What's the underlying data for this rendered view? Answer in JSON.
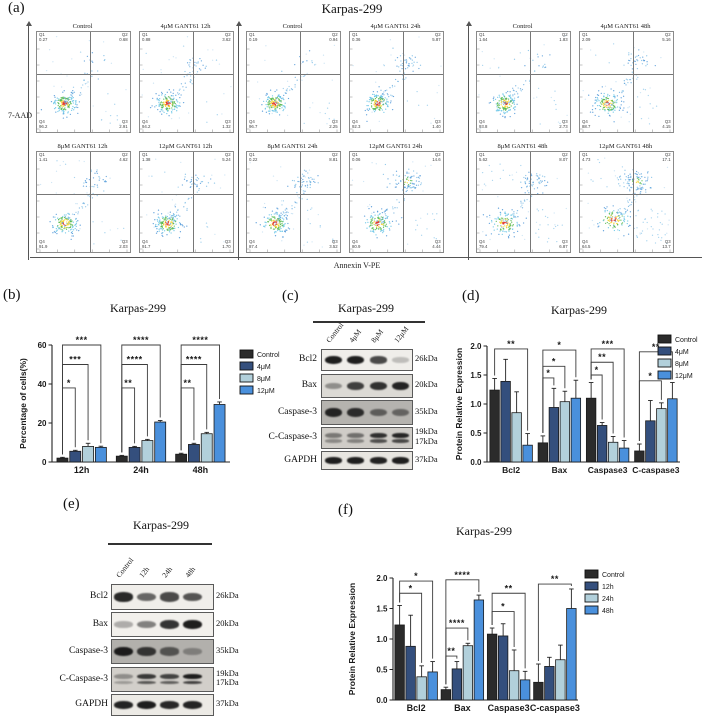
{
  "panel_a": {
    "label": "(a)",
    "title": "Karpas-299",
    "y_axis_label": "7-AAD",
    "x_axis_label": "Annexin V-PE",
    "quadrant_names": [
      "Q1",
      "Q2",
      "Q3",
      "Q4"
    ],
    "groups": [
      {
        "name": "12h",
        "plots": [
          {
            "title": "Control",
            "q1": "0.27",
            "q2": "0.68",
            "q3": "2.91",
            "q4": "96.2"
          },
          {
            "title": "4μM GANT61 12h",
            "q1": "0.88",
            "q2": "3.62",
            "q3": "1.32",
            "q4": "94.2"
          },
          {
            "title": "8μM GANT61 12h",
            "q1": "1.41",
            "q2": "4.62",
            "q3": "2.03",
            "q4": "91.9"
          },
          {
            "title": "12μM GANT61 12h",
            "q1": "1.38",
            "q2": "5.24",
            "q3": "1.70",
            "q4": "91.7"
          }
        ]
      },
      {
        "name": "24h",
        "plots": [
          {
            "title": "Control",
            "q1": "0.19",
            "q2": "0.94",
            "q3": "2.25",
            "q4": "96.7"
          },
          {
            "title": "4μM GANT61 24h",
            "q1": "0.36",
            "q2": "5.87",
            "q3": "1.40",
            "q4": "92.3"
          },
          {
            "title": "8μM GANT61 24h",
            "q1": "0.22",
            "q2": "8.81",
            "q3": "3.52",
            "q4": "87.4"
          },
          {
            "title": "12μM GANT61 24h",
            "q1": "0.06",
            "q2": "14.6",
            "q3": "4.44",
            "q4": "80.9"
          }
        ]
      },
      {
        "name": "48h",
        "plots": [
          {
            "title": "Control",
            "q1": "1.64",
            "q2": "1.83",
            "q3": "2.73",
            "q4": "93.8"
          },
          {
            "title": "4μM GANT61 48h",
            "q1": "2.09",
            "q2": "5.16",
            "q3": "4.15",
            "q4": "88.7"
          },
          {
            "title": "8μM GANT61 48h",
            "q1": "5.62",
            "q2": "8.07",
            "q3": "6.87",
            "q4": "79.4"
          },
          {
            "title": "12μM GANT61 48h",
            "q1": "4.73",
            "q2": "17.1",
            "q3": "13.7",
            "q4": "64.5"
          }
        ]
      }
    ]
  },
  "panel_c": {
    "label": "(c)",
    "title": "Karpas-299",
    "lanes": [
      "Control",
      "4μM",
      "8μM",
      "12μM"
    ],
    "rows": [
      {
        "protein": "Bcl2",
        "kda": [
          "26kDa"
        ],
        "bands": [
          0.95,
          0.95,
          0.75,
          0.22
        ],
        "bg": "#f0eeea"
      },
      {
        "protein": "Bax",
        "kda": [
          "20kDa"
        ],
        "bands": [
          0.38,
          0.78,
          0.85,
          0.92
        ],
        "bg": "#dcdad5"
      },
      {
        "protein": "Caspase-3",
        "kda": [
          "35kDa"
        ],
        "bands": [
          0.9,
          0.85,
          0.55,
          0.5
        ],
        "bg": "#b5b3af"
      },
      {
        "protein": "C-Caspase-3",
        "kda": [
          "19kDa",
          "17kDa"
        ],
        "bands": [
          0.45,
          0.5,
          0.85,
          0.9
        ],
        "bg": "#cfccc7"
      },
      {
        "protein": "GAPDH",
        "kda": [
          "37kDa"
        ],
        "bands": [
          0.95,
          0.95,
          0.93,
          0.95
        ],
        "bg": "#e8e6e1"
      }
    ]
  },
  "panel_e": {
    "label": "(e)",
    "title": "Karpas-299",
    "lanes": [
      "Control",
      "12h",
      "24h",
      "48h"
    ],
    "rows": [
      {
        "protein": "Bcl2",
        "kda": [
          "26kDa"
        ],
        "bands": [
          0.9,
          0.62,
          0.75,
          0.7
        ],
        "bg": "#f0eeea"
      },
      {
        "protein": "Bax",
        "kda": [
          "20kDa"
        ],
        "bands": [
          0.3,
          0.5,
          0.85,
          0.95
        ],
        "bg": "#f2f0ec"
      },
      {
        "protein": "Caspase-3",
        "kda": [
          "35kDa"
        ],
        "bands": [
          0.95,
          0.8,
          0.6,
          0.32
        ],
        "bg": "#b2b0ac"
      },
      {
        "protein": "C-Caspase-3",
        "kda": [
          "19kDa",
          "17kDa"
        ],
        "bands": [
          0.35,
          0.8,
          0.75,
          0.95
        ],
        "bg": "#d2cfca"
      },
      {
        "protein": "GAPDH",
        "kda": [
          "37kDa"
        ],
        "bands": [
          0.92,
          0.95,
          0.9,
          0.92
        ],
        "bg": "#eceae5"
      }
    ]
  },
  "chart_data": [
    {
      "id": "b",
      "panel_label": "(b)",
      "type": "bar",
      "title": "Karpas-299",
      "xlabel": "",
      "ylabel": "Percentage of cells(%)",
      "ylim": [
        0,
        60
      ],
      "yticks": [
        "0",
        "20",
        "40",
        "60"
      ],
      "grid": false,
      "legend_position": "right",
      "categories": [
        "12h",
        "24h",
        "48h"
      ],
      "series": [
        {
          "name": "Control",
          "color": "#2b2b2b",
          "values": [
            2.0,
            3.0,
            4.0
          ],
          "errors": [
            0.4,
            0.4,
            0.5
          ]
        },
        {
          "name": "4μM",
          "color": "#344f7d",
          "values": [
            5.5,
            7.5,
            9.0
          ],
          "errors": [
            0.5,
            0.5,
            0.6
          ]
        },
        {
          "name": "8μM",
          "color": "#b2d0db",
          "values": [
            8.0,
            11.0,
            14.5
          ],
          "errors": [
            1.6,
            0.6,
            0.7
          ]
        },
        {
          "name": "12μM",
          "color": "#4a90dc",
          "values": [
            7.5,
            20.5,
            29.5
          ],
          "errors": [
            0.6,
            0.8,
            1.3
          ]
        }
      ],
      "significance": [
        {
          "category": 0,
          "from": 0,
          "to": 1,
          "level": 38,
          "stars": "*"
        },
        {
          "category": 0,
          "from": 0,
          "to": 2,
          "level": 50,
          "stars": "***"
        },
        {
          "category": 0,
          "from": 0,
          "to": 3,
          "level": 60,
          "stars": "***"
        },
        {
          "category": 1,
          "from": 0,
          "to": 1,
          "level": 38,
          "stars": "**"
        },
        {
          "category": 1,
          "from": 0,
          "to": 2,
          "level": 50,
          "stars": "****"
        },
        {
          "category": 1,
          "from": 0,
          "to": 3,
          "level": 60,
          "stars": "****"
        },
        {
          "category": 2,
          "from": 0,
          "to": 1,
          "level": 38,
          "stars": "**"
        },
        {
          "category": 2,
          "from": 0,
          "to": 2,
          "level": 50,
          "stars": "****"
        },
        {
          "category": 2,
          "from": 0,
          "to": 3,
          "level": 60,
          "stars": "****"
        }
      ]
    },
    {
      "id": "d",
      "panel_label": "(d)",
      "type": "bar",
      "title": "Karpas-299",
      "xlabel": "",
      "ylabel": "Protein Relative Expression",
      "ylim": [
        0,
        2.0
      ],
      "yticks": [
        "0.0",
        "0.5",
        "1.0",
        "1.5",
        "2.0"
      ],
      "grid": false,
      "legend_position": "right",
      "categories": [
        "Bcl2",
        "Bax",
        "Caspase3",
        "C-caspase3"
      ],
      "series": [
        {
          "name": "Control",
          "color": "#2b2b2b",
          "values": [
            1.24,
            0.33,
            1.1,
            0.19
          ],
          "errors": [
            0.2,
            0.12,
            0.27,
            0.12
          ]
        },
        {
          "name": "4μM",
          "color": "#344f7d",
          "values": [
            1.39,
            0.94,
            0.63,
            0.71
          ],
          "errors": [
            0.38,
            0.33,
            0.05,
            0.35
          ]
        },
        {
          "name": "8μM",
          "color": "#b2d0db",
          "values": [
            0.85,
            1.04,
            0.34,
            0.92
          ],
          "errors": [
            0.36,
            0.18,
            0.1,
            0.1
          ]
        },
        {
          "name": "12μM",
          "color": "#4a90dc",
          "values": [
            0.29,
            1.1,
            0.24,
            1.09
          ],
          "errors": [
            0.2,
            0.31,
            0.13,
            0.28
          ]
        }
      ],
      "significance": [
        {
          "category": 0,
          "from": 0,
          "to": 3,
          "level": 1.95,
          "stars": "**"
        },
        {
          "category": 1,
          "from": 0,
          "to": 1,
          "level": 1.45,
          "stars": "*"
        },
        {
          "category": 1,
          "from": 0,
          "to": 2,
          "level": 1.65,
          "stars": "*"
        },
        {
          "category": 1,
          "from": 0,
          "to": 3,
          "level": 1.93,
          "stars": "*"
        },
        {
          "category": 2,
          "from": 0,
          "to": 1,
          "level": 1.5,
          "stars": "*"
        },
        {
          "category": 2,
          "from": 0,
          "to": 2,
          "level": 1.72,
          "stars": "**"
        },
        {
          "category": 2,
          "from": 0,
          "to": 3,
          "level": 1.95,
          "stars": "***"
        },
        {
          "category": 3,
          "from": 0,
          "to": 2,
          "level": 1.4,
          "stars": "*"
        },
        {
          "category": 3,
          "from": 0,
          "to": 3,
          "level": 1.9,
          "stars": "**"
        }
      ]
    },
    {
      "id": "f",
      "panel_label": "(f)",
      "type": "bar",
      "title": "Karpas-299",
      "xlabel": "",
      "ylabel": "Protein Relative Expression",
      "ylim": [
        0,
        2.0
      ],
      "yticks": [
        "0.0",
        "0.5",
        "1.0",
        "1.5",
        "2.0"
      ],
      "grid": false,
      "legend_position": "right",
      "categories": [
        "Bcl2",
        "Bax",
        "Caspase3",
        "C-caspase3"
      ],
      "series": [
        {
          "name": "Control",
          "color": "#2b2b2b",
          "values": [
            1.23,
            0.17,
            1.08,
            0.29
          ],
          "errors": [
            0.32,
            0.04,
            0.1,
            0.3
          ]
        },
        {
          "name": "12h",
          "color": "#344f7d",
          "values": [
            0.88,
            0.51,
            1.05,
            0.55
          ],
          "errors": [
            0.51,
            0.12,
            0.2,
            0.15
          ]
        },
        {
          "name": "24h",
          "color": "#b2d0db",
          "values": [
            0.38,
            0.89,
            0.48,
            0.66
          ],
          "errors": [
            0.18,
            0.04,
            0.34,
            0.24
          ]
        },
        {
          "name": "48h",
          "color": "#4a90dc",
          "values": [
            0.46,
            1.64,
            0.33,
            1.5
          ],
          "errors": [
            0.17,
            0.08,
            0.14,
            0.32
          ]
        }
      ],
      "significance": [
        {
          "category": 0,
          "from": 0,
          "to": 2,
          "level": 1.75,
          "stars": "*"
        },
        {
          "category": 0,
          "from": 0,
          "to": 3,
          "level": 1.95,
          "stars": "*"
        },
        {
          "category": 1,
          "from": 0,
          "to": 1,
          "level": 0.72,
          "stars": "**"
        },
        {
          "category": 1,
          "from": 0,
          "to": 2,
          "level": 1.18,
          "stars": "****"
        },
        {
          "category": 1,
          "from": 0,
          "to": 3,
          "level": 1.97,
          "stars": "****"
        },
        {
          "category": 2,
          "from": 0,
          "to": 2,
          "level": 1.45,
          "stars": "*"
        },
        {
          "category": 2,
          "from": 0,
          "to": 3,
          "level": 1.75,
          "stars": "**"
        },
        {
          "category": 3,
          "from": 0,
          "to": 3,
          "level": 1.9,
          "stars": "**"
        }
      ]
    }
  ]
}
